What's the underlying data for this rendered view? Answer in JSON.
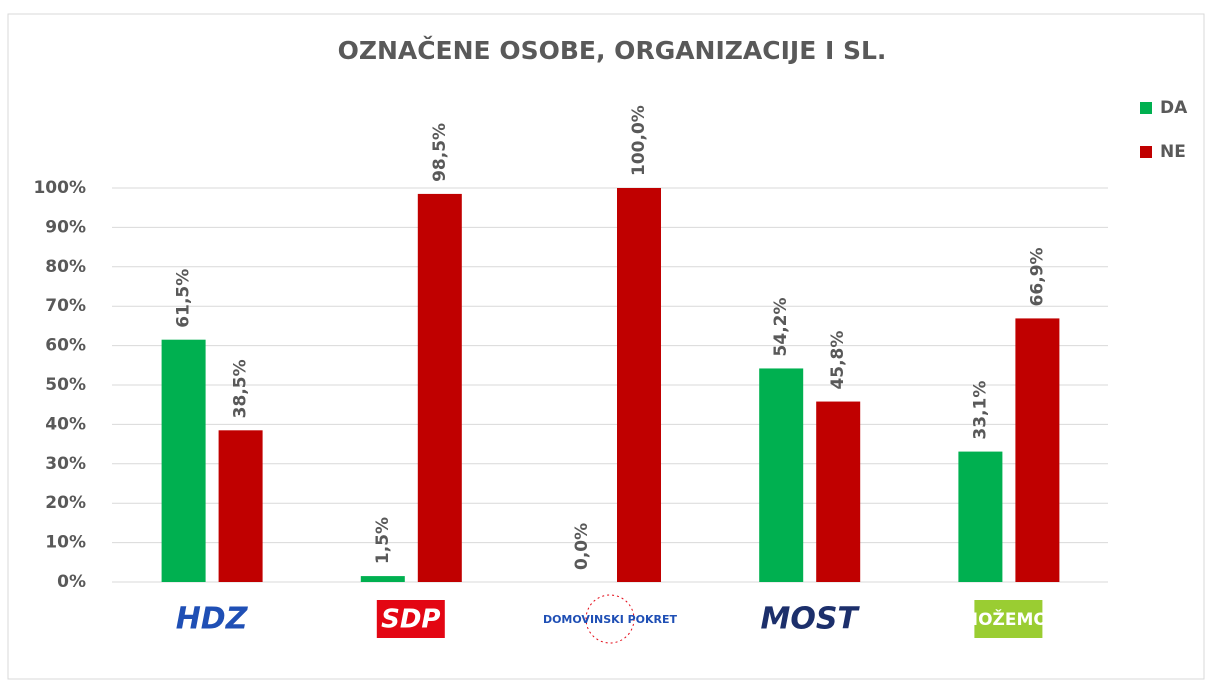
{
  "chart_data": {
    "type": "bar",
    "title": "OZNAČENE  OSOBE,  ORGANIZACIJE  I SL.",
    "categories": [
      "HDZ",
      "SDP",
      "DOMOVINSKI POKRET",
      "MOST",
      "MOŽEMO!"
    ],
    "series": [
      {
        "name": "DA",
        "color": "#00b050",
        "values": [
          61.5,
          1.5,
          0,
          54.2,
          33.1
        ],
        "value_labels": [
          "61,5%",
          "1,5%",
          "0,0%",
          "54,2%",
          "33,1%"
        ]
      },
      {
        "name": "NE",
        "color": "#c00000",
        "values": [
          38.5,
          98.5,
          100,
          45.8,
          66.9
        ],
        "value_labels": [
          "38,5%",
          "98,5%",
          "100,0%",
          "45,8%",
          "66,9%"
        ]
      }
    ],
    "ylim": [
      0,
      100
    ],
    "yticks": [
      {
        "value": 0,
        "label": "0%"
      },
      {
        "value": 10,
        "label": "10%"
      },
      {
        "value": 20,
        "label": "20%"
      },
      {
        "value": 30,
        "label": "30%"
      },
      {
        "value": 40,
        "label": "40%"
      },
      {
        "value": 50,
        "label": "50%"
      },
      {
        "value": 60,
        "label": "60%"
      },
      {
        "value": 70,
        "label": "70%"
      },
      {
        "value": 80,
        "label": "80%"
      },
      {
        "value": 90,
        "label": "90%"
      },
      {
        "value": 100,
        "label": "100%"
      }
    ],
    "grid": true,
    "legend": "right"
  }
}
